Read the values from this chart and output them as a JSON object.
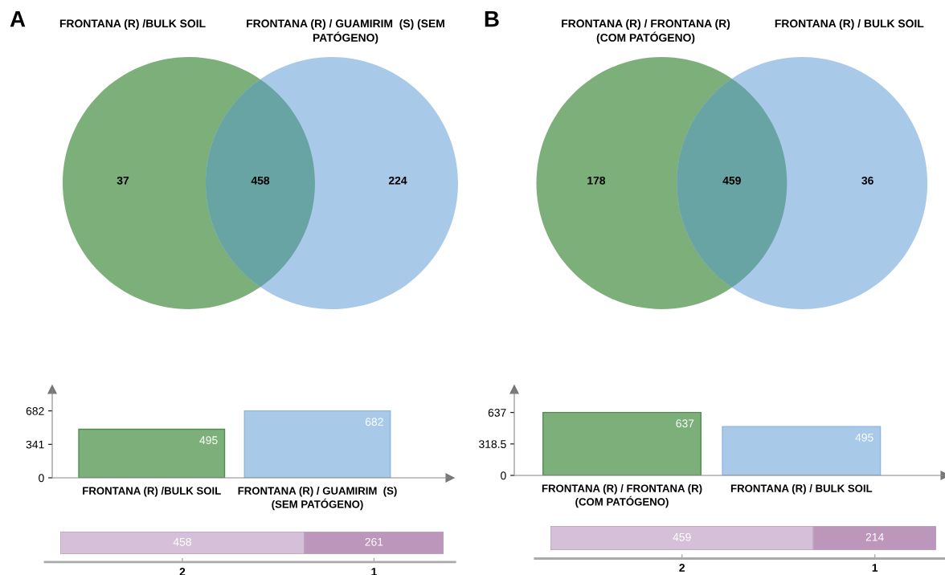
{
  "chart_data": [
    {
      "type": "other",
      "title": "A",
      "categories": [
        null,
        null,
        null
      ],
      "values": [
        37,
        458,
        224
      ],
      "colors": [
        "#7daf7b",
        "#69a4a4",
        "#a9c9e8"
      ],
      "data_labels": true,
      "annotations": [
        "FRONTANA (R) /BULK SOIL",
        "FRONTANA (R) / GUAMIRIM  (S) (SEM\nPATÓGENO)"
      ]
    },
    {
      "type": "bar",
      "categories": [
        "FRONTANA (R) /BULK SOIL",
        "FRONTANA (R) / GUAMIRIM  (S)\n(SEM PATÓGENO)"
      ],
      "values": [
        495,
        682
      ],
      "colors": [
        "#7daf7b",
        "#a9c9e8"
      ],
      "ylim": [
        0,
        900
      ],
      "yticks": [
        0,
        341,
        682
      ],
      "data_labels": true
    },
    {
      "type": "bar",
      "orientation": "horizontal",
      "stacked": true,
      "categories": [
        null
      ],
      "series": [
        {
          "color": "#d6c0d9",
          "values": [
            458
          ]
        },
        {
          "color": "#bc96bb",
          "values": [
            261
          ]
        }
      ],
      "data_labels": true,
      "annotations": [
        "2",
        "1"
      ]
    },
    {
      "type": "other",
      "title": "B",
      "categories": [
        null,
        null,
        null
      ],
      "values": [
        178,
        459,
        36
      ],
      "colors": [
        "#7daf7b",
        "#69a4a4",
        "#a9c9e8"
      ],
      "data_labels": true,
      "annotations": [
        "FRONTANA (R) / FRONTANA (R)\n(COM PATÓGENO)",
        "FRONTANA (R) / BULK SOIL"
      ]
    },
    {
      "type": "bar",
      "categories": [
        "FRONTANA (R) / FRONTANA (R)\n(COM PATÓGENO)",
        "FRONTANA (R) / BULK SOIL"
      ],
      "values": [
        637,
        495
      ],
      "colors": [
        "#7daf7b",
        "#a9c9e8"
      ],
      "ylim": [
        0,
        870
      ],
      "yticks": [
        0,
        318.5,
        637
      ],
      "data_labels": true
    },
    {
      "type": "bar",
      "orientation": "horizontal",
      "stacked": true,
      "categories": [
        null
      ],
      "series": [
        {
          "color": "#d6c0d9",
          "values": [
            459
          ]
        },
        {
          "color": "#bc96bb",
          "values": [
            214
          ]
        }
      ],
      "data_labels": true,
      "annotations": [
        "2",
        "1"
      ]
    }
  ]
}
